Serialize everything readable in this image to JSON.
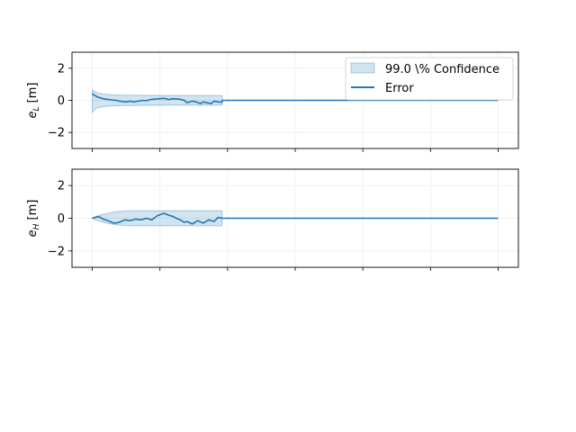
{
  "chart_data": [
    {
      "type": "line",
      "id": "top",
      "ylabel_main": "e",
      "ylabel_sub": "L",
      "ylabel_unit": " [m]",
      "ylim": [
        -3,
        3
      ],
      "xlim": [
        -150,
        3150
      ],
      "yticks": [
        -2,
        0,
        2
      ],
      "xticks": [
        0,
        500,
        1000,
        1500,
        2000,
        2500,
        3000
      ],
      "show_xtick_labels": false,
      "grid": true,
      "legend": {
        "placement": "top-right",
        "band_label": "99.0 \\% Confidence",
        "line_label": "Error"
      },
      "colors": {
        "line": "#1f77b4",
        "band": "#1f77b4",
        "band_opacity": 0.2
      },
      "band": {
        "x": [
          0,
          15,
          30,
          60,
          100,
          150,
          200,
          300,
          400,
          600,
          800,
          960
        ],
        "upper": [
          0.65,
          0.55,
          0.5,
          0.42,
          0.38,
          0.35,
          0.33,
          0.32,
          0.31,
          0.3,
          0.3,
          0.3
        ],
        "lower": [
          -0.75,
          -0.6,
          -0.5,
          -0.42,
          -0.38,
          -0.35,
          -0.33,
          -0.32,
          -0.31,
          -0.3,
          -0.3,
          -0.3
        ]
      },
      "series": [
        {
          "name": "Error",
          "x": [
            0,
            10,
            20,
            30,
            40,
            50,
            60,
            80,
            100,
            120,
            150,
            180,
            200,
            250,
            280,
            300,
            340,
            380,
            400,
            430,
            460,
            500,
            540,
            560,
            600,
            640,
            680,
            700,
            720,
            740,
            760,
            800,
            820,
            850,
            880,
            900,
            930,
            960,
            960,
            3000
          ],
          "y": [
            0.4,
            0.35,
            0.3,
            0.25,
            0.2,
            0.18,
            0.15,
            0.1,
            0.08,
            0.05,
            0.02,
            0.0,
            -0.05,
            -0.1,
            -0.05,
            -0.1,
            -0.05,
            0.0,
            -0.02,
            0.05,
            0.08,
            0.1,
            0.12,
            0.05,
            0.1,
            0.08,
            0.0,
            -0.15,
            -0.1,
            -0.05,
            -0.08,
            -0.2,
            -0.1,
            -0.15,
            -0.2,
            -0.05,
            -0.1,
            -0.12,
            0,
            0
          ]
        }
      ]
    },
    {
      "type": "line",
      "id": "bottom",
      "ylabel_main": "e",
      "ylabel_sub": "H",
      "ylabel_unit": " [m]",
      "ylim": [
        -3,
        3
      ],
      "xlim": [
        -150,
        3150
      ],
      "yticks": [
        -2,
        0,
        2
      ],
      "xticks": [
        0,
        500,
        1000,
        1500,
        2000,
        2500,
        3000
      ],
      "show_xtick_labels": false,
      "grid": true,
      "colors": {
        "line": "#1f77b4",
        "band": "#1f77b4",
        "band_opacity": 0.2
      },
      "band": {
        "x": [
          0,
          40,
          80,
          120,
          160,
          200,
          250,
          300,
          400,
          600,
          800,
          960
        ],
        "upper": [
          0.0,
          0.15,
          0.25,
          0.32,
          0.38,
          0.42,
          0.45,
          0.46,
          0.46,
          0.46,
          0.46,
          0.46
        ],
        "lower": [
          0.0,
          -0.15,
          -0.25,
          -0.32,
          -0.38,
          -0.42,
          -0.45,
          -0.46,
          -0.46,
          -0.46,
          -0.46,
          -0.46
        ]
      },
      "series": [
        {
          "name": "Error",
          "x": [
            0,
            20,
            40,
            60,
            80,
            100,
            130,
            160,
            200,
            240,
            280,
            320,
            360,
            400,
            440,
            480,
            510,
            530,
            560,
            600,
            620,
            650,
            680,
            700,
            740,
            780,
            820,
            860,
            900,
            930,
            960,
            960,
            3000
          ],
          "y": [
            0,
            0.05,
            0.1,
            0.05,
            -0.05,
            -0.1,
            -0.2,
            -0.3,
            -0.25,
            -0.1,
            -0.15,
            -0.05,
            -0.1,
            0.0,
            -0.1,
            0.15,
            0.25,
            0.3,
            0.2,
            0.1,
            0.0,
            -0.1,
            -0.25,
            -0.2,
            -0.35,
            -0.15,
            -0.3,
            -0.1,
            -0.2,
            0.05,
            0.0,
            0,
            0
          ]
        }
      ]
    }
  ]
}
